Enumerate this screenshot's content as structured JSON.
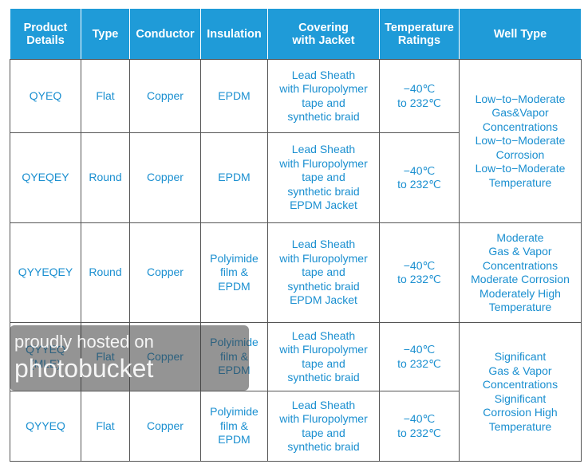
{
  "table": {
    "columns": [
      "Product\nDetails",
      "Type",
      "Conductor",
      "Insulation",
      "Covering\nwith Jacket",
      "Temperature\nRatings",
      "Well Type"
    ],
    "rows": [
      [
        "QYEQ",
        "Flat",
        "Copper",
        "EPDM",
        "Lead Sheath\nwith Fluropolymer\ntape and\nsynthetic braid",
        "−40℃\nto 232℃"
      ],
      [
        "QYEQEY",
        "Round",
        "Copper",
        "EPDM",
        "Lead Sheath\nwith Fluropolymer\ntape and\nsynthetic braid\nEPDM Jacket",
        "−40℃\nto 232℃"
      ],
      [
        "QYYEQEY",
        "Round",
        "Copper",
        "Polyimide\nfilm &\nEPDM",
        "Lead Sheath\nwith Fluropolymer\ntape and\nsynthetic braid\nEPDM Jacket",
        "−40℃\nto 232℃"
      ],
      [
        "QYYEQ\n(MLE)",
        "Flat",
        "Copper",
        "Polyimide\nfilm &\nEPDM",
        "Lead Sheath\nwith Fluropolymer\ntape and\nsynthetic braid",
        "−40℃\nto 232℃"
      ],
      [
        "QYYEQ",
        "Flat",
        "Copper",
        "Polyimide\nfilm &\nEPDM",
        "Lead Sheath\nwith Fluropolymer\ntape and\nsynthetic braid",
        "−40℃\nto 232℃"
      ]
    ],
    "well_types": [
      "Low−to−Moderate\nGas&Vapor\nConcentrations\nLow−to−Moderate\nCorrosion\nLow−to−Moderate\nTemperature",
      "Moderate\nGas & Vapor\nConcentrations\nModerate Corrosion\nModerately High\nTemperature",
      "Significant\nGas & Vapor\nConcentrations\nSignificant\nCorrosion High\nTemperature"
    ]
  },
  "watermark": {
    "line1": "proudly hosted on",
    "line2": "photobucket"
  }
}
